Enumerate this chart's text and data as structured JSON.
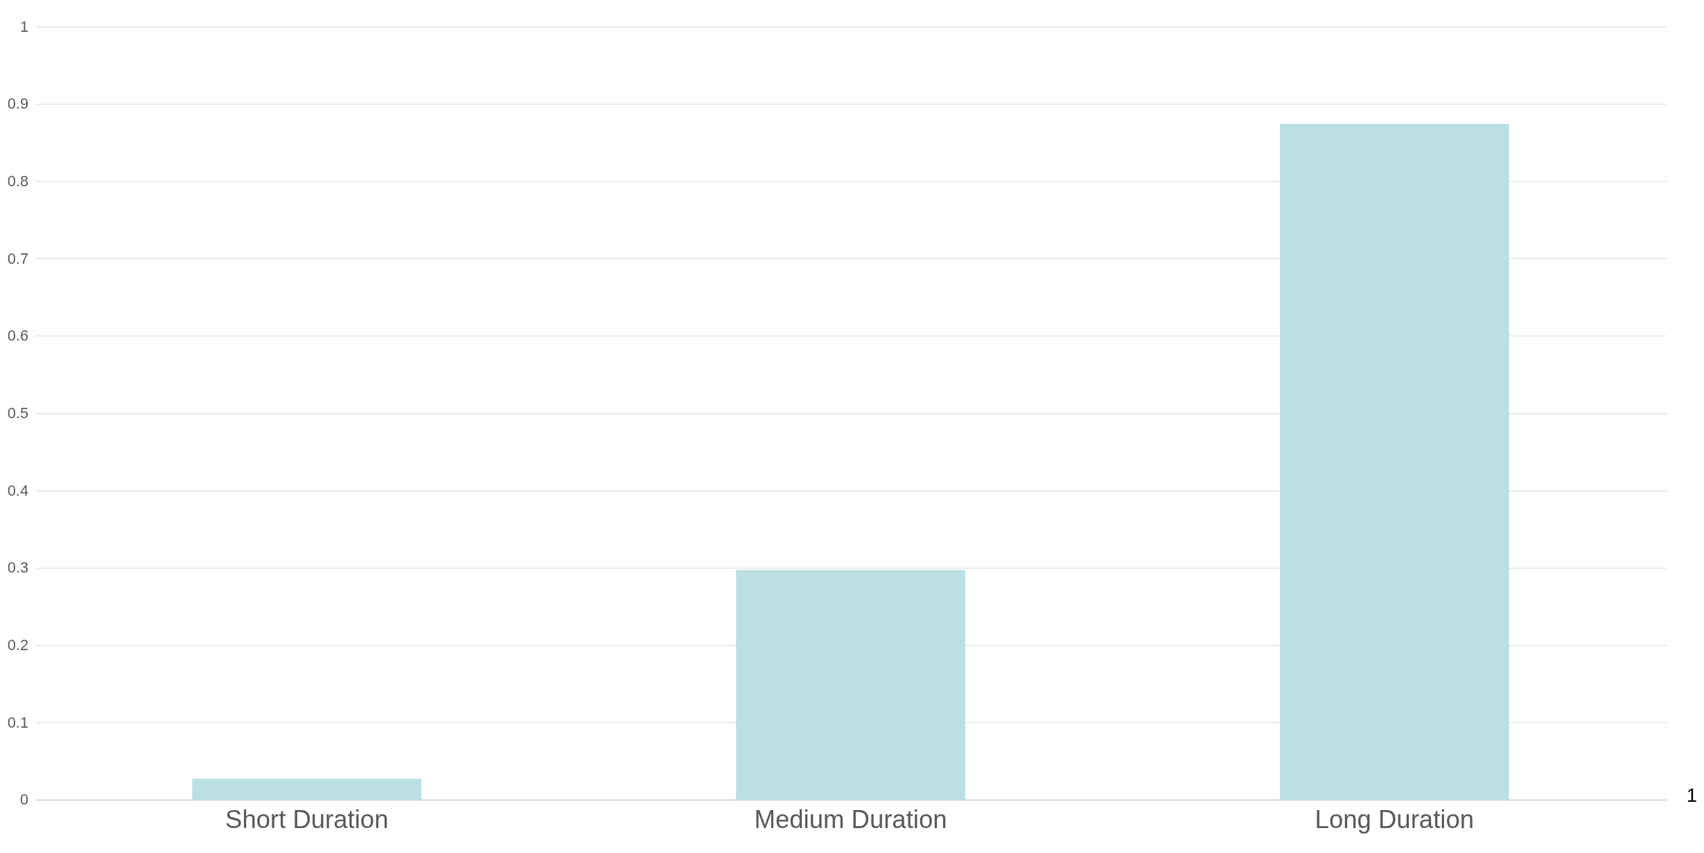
{
  "chart_data": {
    "type": "bar",
    "categories": [
      "Short Duration",
      "Medium Duration",
      "Long Duration"
    ],
    "values": [
      0.027,
      0.297,
      0.874
    ],
    "color": "#bbe0e3",
    "ylim": [
      0,
      1
    ],
    "yticks": [
      0,
      0.1,
      0.2,
      0.3,
      0.4,
      0.5,
      0.6,
      0.7,
      0.8,
      0.9,
      1
    ],
    "grid": "y",
    "annotations": [
      "1"
    ]
  }
}
